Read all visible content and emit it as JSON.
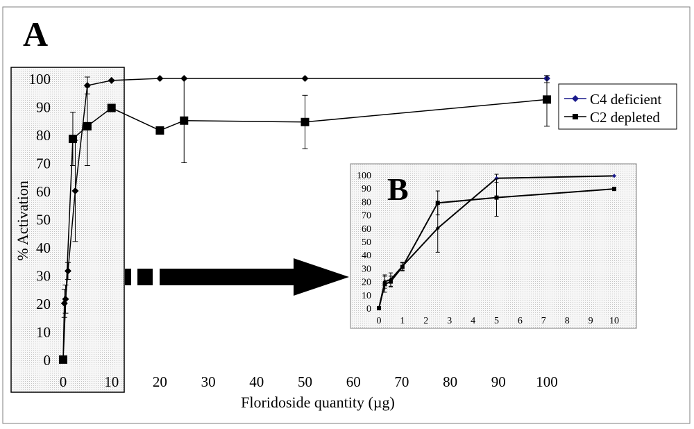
{
  "chart_data": [
    {
      "panel": "A",
      "type": "line",
      "title": "",
      "xlabel": "Floridoside quantity (µg)",
      "ylabel": "% Activation",
      "xlim": [
        0,
        100
      ],
      "ylim": [
        0,
        100
      ],
      "x_ticks": [
        0,
        10,
        20,
        30,
        40,
        50,
        60,
        70,
        80,
        90,
        100
      ],
      "x_tick_labels": [
        "0",
        "10",
        "20",
        "30",
        "40",
        "50",
        "60",
        "70",
        "80",
        "90",
        "100"
      ],
      "y_ticks": [
        0,
        10,
        20,
        30,
        40,
        50,
        60,
        70,
        80,
        90,
        100
      ],
      "y_tick_labels": [
        "0",
        "10",
        "20",
        "30",
        "40",
        "50",
        "60",
        "70",
        "80",
        "90",
        "100"
      ],
      "legend_position": "right",
      "series": [
        {
          "name": "C4 deficient",
          "marker": "diamond",
          "legend_color": "#1a1a8c",
          "x": [
            0,
            0.25,
            0.5,
            1,
            2.5,
            5,
            10,
            20,
            25,
            50,
            100
          ],
          "y": [
            0,
            20,
            21.5,
            31.5,
            60,
            97.5,
            99.3,
            100,
            100,
            100,
            100
          ],
          "error": [
            0,
            5,
            5,
            3,
            18,
            3,
            0,
            0,
            0,
            0,
            1.5
          ]
        },
        {
          "name": "C2 depleted",
          "marker": "square",
          "legend_color": "#000000",
          "x": [
            0,
            2,
            5,
            10,
            20,
            25,
            50,
            100
          ],
          "y": [
            0,
            78.5,
            83,
            89.5,
            81.5,
            85,
            84.5,
            92.5
          ],
          "error": [
            0,
            9.5,
            14,
            0,
            0,
            15,
            9.5,
            9.5
          ]
        }
      ]
    },
    {
      "panel": "B",
      "type": "line",
      "title": "",
      "xlabel": "",
      "ylabel": "",
      "xlim": [
        0,
        10
      ],
      "ylim": [
        0,
        100
      ],
      "x_ticks": [
        0,
        1,
        2,
        3,
        4,
        5,
        6,
        7,
        8,
        9,
        10
      ],
      "x_tick_labels": [
        "0",
        "1",
        "2",
        "3",
        "4",
        "5",
        "6",
        "7",
        "8",
        "9",
        "10"
      ],
      "y_ticks": [
        0,
        10,
        20,
        30,
        40,
        50,
        60,
        70,
        80,
        90,
        100
      ],
      "y_tick_labels": [
        "0",
        "10",
        "20",
        "30",
        "40",
        "50",
        "60",
        "70",
        "80",
        "90",
        "100"
      ],
      "series": [
        {
          "name": "C4 deficient",
          "marker": "diamond",
          "x": [
            0,
            0.25,
            0.5,
            1,
            2.5,
            5,
            10
          ],
          "y": [
            0,
            20,
            21.5,
            31.5,
            60,
            97.5,
            99.3
          ],
          "error": [
            0,
            5,
            5,
            3,
            18,
            3,
            0
          ]
        },
        {
          "name": "C2 depleted",
          "marker": "square",
          "x": [
            0,
            0.25,
            0.5,
            1,
            2.5,
            5,
            10
          ],
          "y": [
            0,
            18,
            20,
            31,
            79,
            83,
            89.5
          ],
          "error": [
            0,
            6,
            4,
            3,
            9,
            14,
            0
          ]
        }
      ]
    }
  ],
  "panel_labels": {
    "a": "A",
    "b": "B"
  }
}
